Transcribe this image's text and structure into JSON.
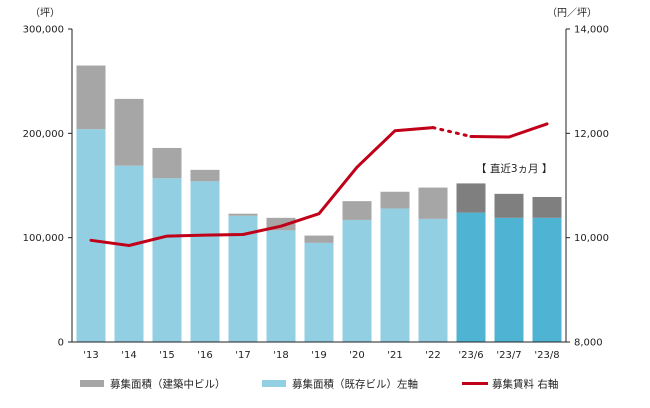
{
  "chart_data": {
    "type": "bar",
    "left_unit": "（坪）",
    "right_unit": "（円／坪）",
    "categories": [
      "'13",
      "'14",
      "'15",
      "'16",
      "'17",
      "'18",
      "'19",
      "'20",
      "'21",
      "'22",
      "'23/6",
      "'23/7",
      "'23/8"
    ],
    "left_ylim": [
      0,
      300000
    ],
    "left_ticks": [
      "0",
      "100,000",
      "200,000",
      "300,000"
    ],
    "left_tick_values": [
      0,
      100000,
      200000,
      300000
    ],
    "right_ylim": [
      8000,
      14000
    ],
    "right_ticks": [
      "8,000",
      "10,000",
      "12,000",
      "14,000"
    ],
    "right_tick_values": [
      8000,
      10000,
      12000,
      14000
    ],
    "series": [
      {
        "name": "募集面積（既存ビル）左軸",
        "kind": "bar-bottom",
        "values": [
          204000,
          169000,
          157000,
          154000,
          121000,
          107000,
          95000,
          117000,
          128000,
          118000,
          124000,
          119000,
          119000
        ]
      },
      {
        "name": "募集面積（建築中ビル）",
        "kind": "bar-top",
        "values": [
          61000,
          64000,
          29000,
          11000,
          2000,
          12000,
          7000,
          18000,
          16000,
          30000,
          28000,
          23000,
          20000
        ]
      },
      {
        "name": "募集賃料 右軸",
        "kind": "line",
        "values": [
          9950,
          9850,
          10030,
          10050,
          10060,
          10220,
          10460,
          11350,
          12050,
          12110,
          11940,
          11930,
          12180
        ]
      }
    ],
    "highlight_count": 3,
    "annotation": "【 直近3ヵ月 】",
    "colors": {
      "existing": "#92cfe3",
      "existing_recent": "#4fb3d3",
      "construction": "#a6a6a6",
      "construction_recent": "#7f7f7f",
      "line": "#c00018",
      "axis": "#222222"
    },
    "legend": [
      {
        "label": "募集面積（建築中ビル）",
        "type": "bar",
        "color": "#a6a6a6"
      },
      {
        "label": "募集面積（既存ビル）左軸",
        "type": "bar",
        "color": "#92cfe3"
      },
      {
        "label": "募集賃料 右軸",
        "type": "line",
        "color": "#c00018"
      }
    ]
  }
}
